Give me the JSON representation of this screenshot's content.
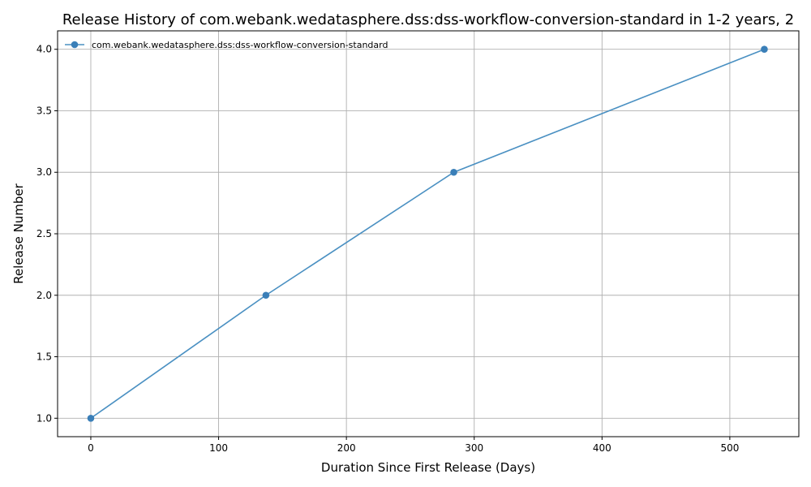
{
  "chart_data": {
    "type": "line",
    "title": "Release History of com.webank.wedatasphere.dss:dss-workflow-conversion-standard in 1-2 years, 2",
    "xlabel": "Duration Since First Release (Days)",
    "ylabel": "Release Number",
    "xlim": [
      -26,
      554
    ],
    "ylim": [
      0.85,
      4.15
    ],
    "xticks": [
      0,
      100,
      200,
      300,
      400,
      500
    ],
    "yticks": [
      1.0,
      1.5,
      2.0,
      2.5,
      3.0,
      3.5,
      4.0
    ],
    "xtick_labels": [
      "0",
      "100",
      "200",
      "300",
      "400",
      "500"
    ],
    "ytick_labels": [
      "1.0",
      "1.5",
      "2.0",
      "2.5",
      "3.0",
      "3.5",
      "4.0"
    ],
    "grid": true,
    "legend_position": "top-left",
    "series": [
      {
        "name": "com.webank.wedatasphere.dss:dss-workflow-conversion-standard",
        "color": "#4a90c2",
        "marker_color": "#3a7fb8",
        "x": [
          0,
          137,
          284,
          527
        ],
        "y": [
          1,
          2,
          3,
          4
        ]
      }
    ]
  }
}
